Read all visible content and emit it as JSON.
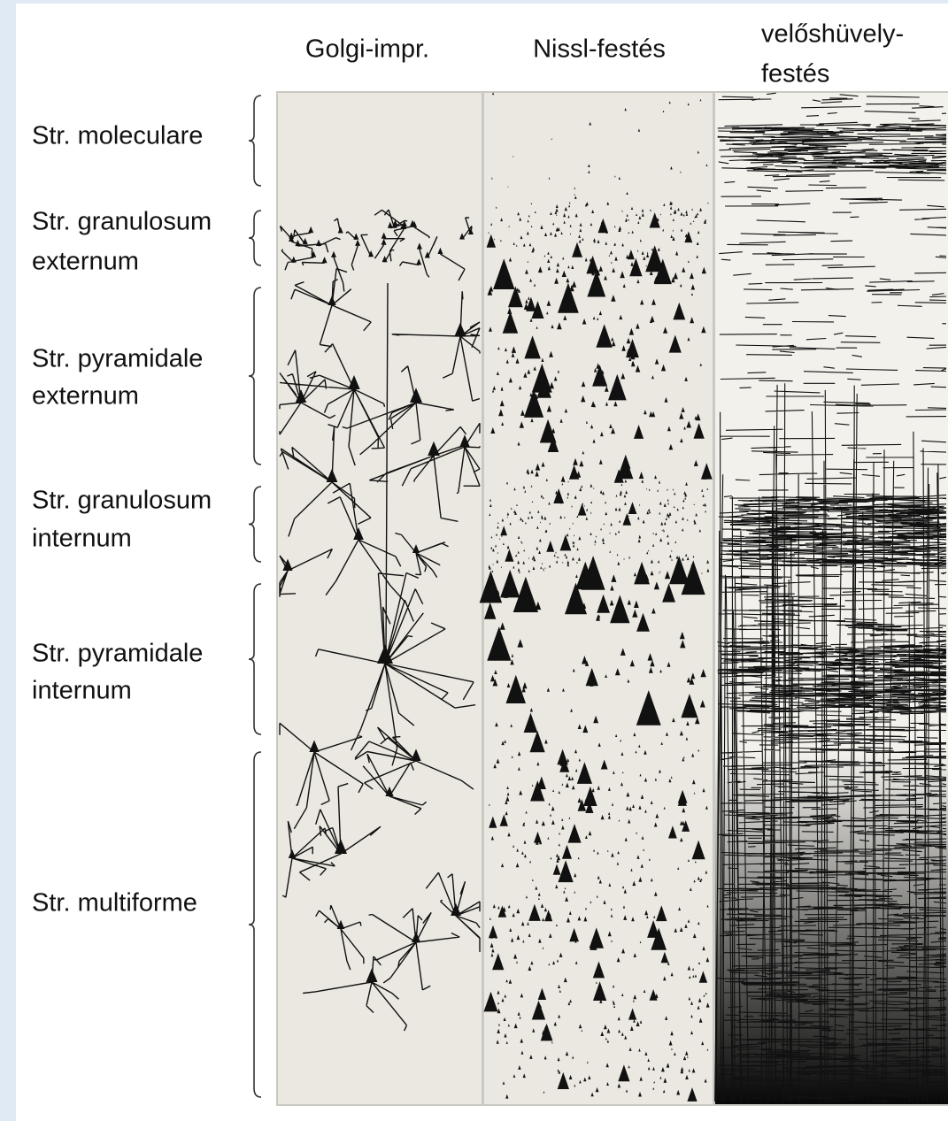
{
  "columns": [
    {
      "label": [
        "Golgi-impr."
      ]
    },
    {
      "label": [
        "Nissl-festés"
      ]
    },
    {
      "label": [
        "velőshüvely-",
        "festés"
      ]
    }
  ],
  "layers": [
    {
      "label": [
        "Str. moleculare"
      ]
    },
    {
      "label": [
        "Str. granulosum",
        "externum"
      ]
    },
    {
      "label": [
        "Str. pyramidale",
        "externum"
      ]
    },
    {
      "label": [
        "Str. granulosum",
        "internum"
      ]
    },
    {
      "label": [
        "Str. pyramidale",
        "internum"
      ]
    },
    {
      "label": [
        "Str. multiforme"
      ]
    }
  ]
}
